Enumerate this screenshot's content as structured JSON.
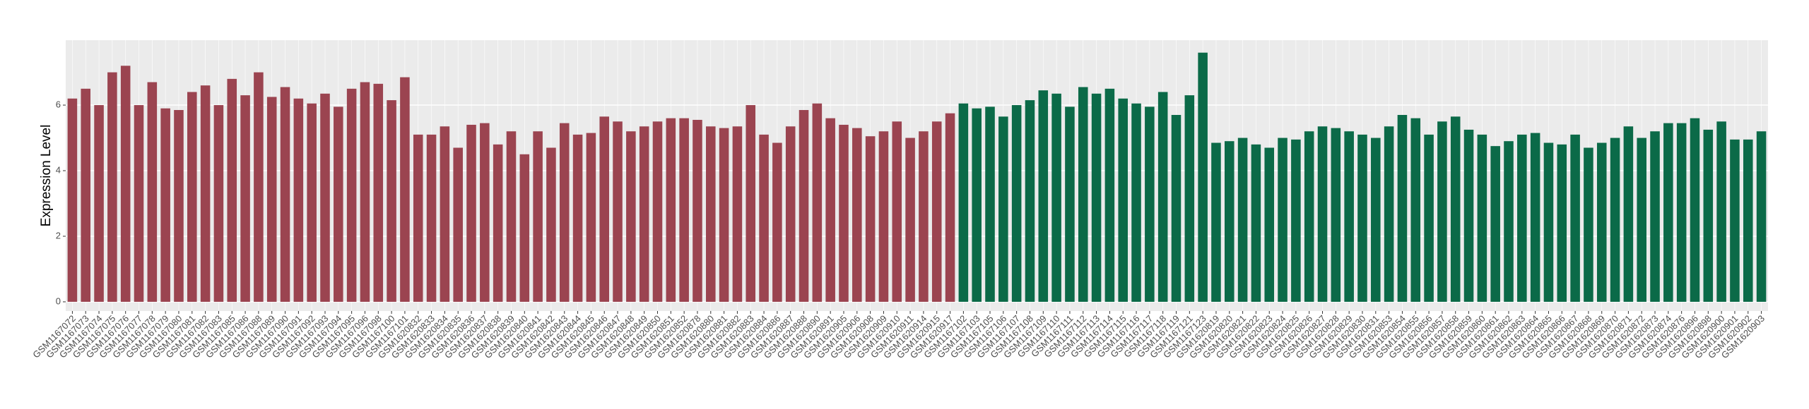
{
  "chart_data": {
    "type": "bar",
    "y_label": "Expression Level",
    "ylim": [
      -0.28,
      7.98
    ],
    "yticks": [
      0,
      2,
      4,
      6
    ],
    "grid": true,
    "series": [
      {
        "color": "#9b4450",
        "categories": [
          "GSM1167072",
          "GSM1167073",
          "GSM1167074",
          "GSM1167075",
          "GSM1167076",
          "GSM1167077",
          "GSM1167078",
          "GSM1167079",
          "GSM1167080",
          "GSM1167081",
          "GSM1167082",
          "GSM1167083",
          "GSM1167085",
          "GSM1167086",
          "GSM1167088",
          "GSM1167089",
          "GSM1167090",
          "GSM1167091",
          "GSM1167092",
          "GSM1167093",
          "GSM1167094",
          "GSM1167095",
          "GSM1167096",
          "GSM1167098",
          "GSM1167100",
          "GSM1167101",
          "GSM1620832",
          "GSM1620833",
          "GSM1620834",
          "GSM1620835",
          "GSM1620836",
          "GSM1620837",
          "GSM1620838",
          "GSM1620839",
          "GSM1620840",
          "GSM1620841",
          "GSM1620842",
          "GSM1620843",
          "GSM1620844",
          "GSM1620845",
          "GSM1620846",
          "GSM1620847",
          "GSM1620848",
          "GSM1620849",
          "GSM1620850",
          "GSM1620851",
          "GSM1620852",
          "GSM1620878",
          "GSM1620880",
          "GSM1620881",
          "GSM1620882",
          "GSM1620883",
          "GSM1620884",
          "GSM1620886",
          "GSM1620887",
          "GSM1620888",
          "GSM1620890",
          "GSM1620891",
          "GSM1620905",
          "GSM1620906",
          "GSM1620908",
          "GSM1620909",
          "GSM1620910",
          "GSM1620911",
          "GSM1620914",
          "GSM1620915",
          "GSM1620917"
        ],
        "values": [
          6.2,
          6.5,
          6.0,
          7.0,
          7.2,
          6.0,
          6.7,
          5.9,
          5.85,
          6.4,
          6.6,
          6.0,
          6.8,
          6.3,
          7.0,
          6.25,
          6.55,
          6.2,
          6.05,
          6.35,
          5.95,
          6.5,
          6.7,
          6.65,
          6.15,
          6.85,
          5.1,
          5.1,
          5.35,
          4.7,
          5.4,
          5.45,
          4.8,
          5.2,
          4.5,
          5.2,
          4.7,
          5.45,
          5.1,
          5.15,
          5.65,
          5.5,
          5.2,
          5.35,
          5.5,
          5.6,
          5.6,
          5.55,
          5.35,
          5.3,
          5.35,
          6.0,
          5.1,
          4.85,
          5.35,
          5.85,
          6.05,
          5.6,
          5.4,
          5.3,
          5.05,
          5.2,
          5.5,
          5.0,
          5.2,
          5.5,
          5.75
        ]
      },
      {
        "color": "#0b6a48",
        "categories": [
          "GSM1167102",
          "GSM1167103",
          "GSM1167105",
          "GSM1167106",
          "GSM1167107",
          "GSM1167108",
          "GSM1167109",
          "GSM1167110",
          "GSM1167111",
          "GSM1167112",
          "GSM1167113",
          "GSM1167114",
          "GSM1167115",
          "GSM1167116",
          "GSM1167117",
          "GSM1167118",
          "GSM1167119",
          "GSM1167121",
          "GSM1167123",
          "GSM1620819",
          "GSM1620820",
          "GSM1620821",
          "GSM1620822",
          "GSM1620823",
          "GSM1620824",
          "GSM1620825",
          "GSM1620826",
          "GSM1620827",
          "GSM1620828",
          "GSM1620829",
          "GSM1620830",
          "GSM1620831",
          "GSM1620853",
          "GSM1620854",
          "GSM1620855",
          "GSM1620856",
          "GSM1620857",
          "GSM1620858",
          "GSM1620859",
          "GSM1620860",
          "GSM1620861",
          "GSM1620862",
          "GSM1620863",
          "GSM1620864",
          "GSM1620865",
          "GSM1620866",
          "GSM1620867",
          "GSM1620868",
          "GSM1620869",
          "GSM1620870",
          "GSM1620871",
          "GSM1620872",
          "GSM1620873",
          "GSM1620874",
          "GSM1620876",
          "GSM1620896",
          "GSM1620898",
          "GSM1620900",
          "GSM1620901",
          "GSM1620902",
          "GSM1620903"
        ],
        "values": [
          6.05,
          5.9,
          5.95,
          5.65,
          6.0,
          6.15,
          6.45,
          6.35,
          5.95,
          6.55,
          6.35,
          6.5,
          6.2,
          6.05,
          5.95,
          6.4,
          5.7,
          6.3,
          7.6,
          4.85,
          4.9,
          5.0,
          4.8,
          4.7,
          5.0,
          4.95,
          5.2,
          5.35,
          5.3,
          5.2,
          5.1,
          5.0,
          5.35,
          5.7,
          5.6,
          5.1,
          5.5,
          5.65,
          5.25,
          5.1,
          4.75,
          4.9,
          5.1,
          5.15,
          4.85,
          4.8,
          5.1,
          4.7,
          4.85,
          5.0,
          5.35,
          5.0,
          5.2,
          5.45,
          5.45,
          5.6,
          5.25,
          5.5,
          4.95,
          4.95,
          5.2
        ]
      }
    ]
  }
}
